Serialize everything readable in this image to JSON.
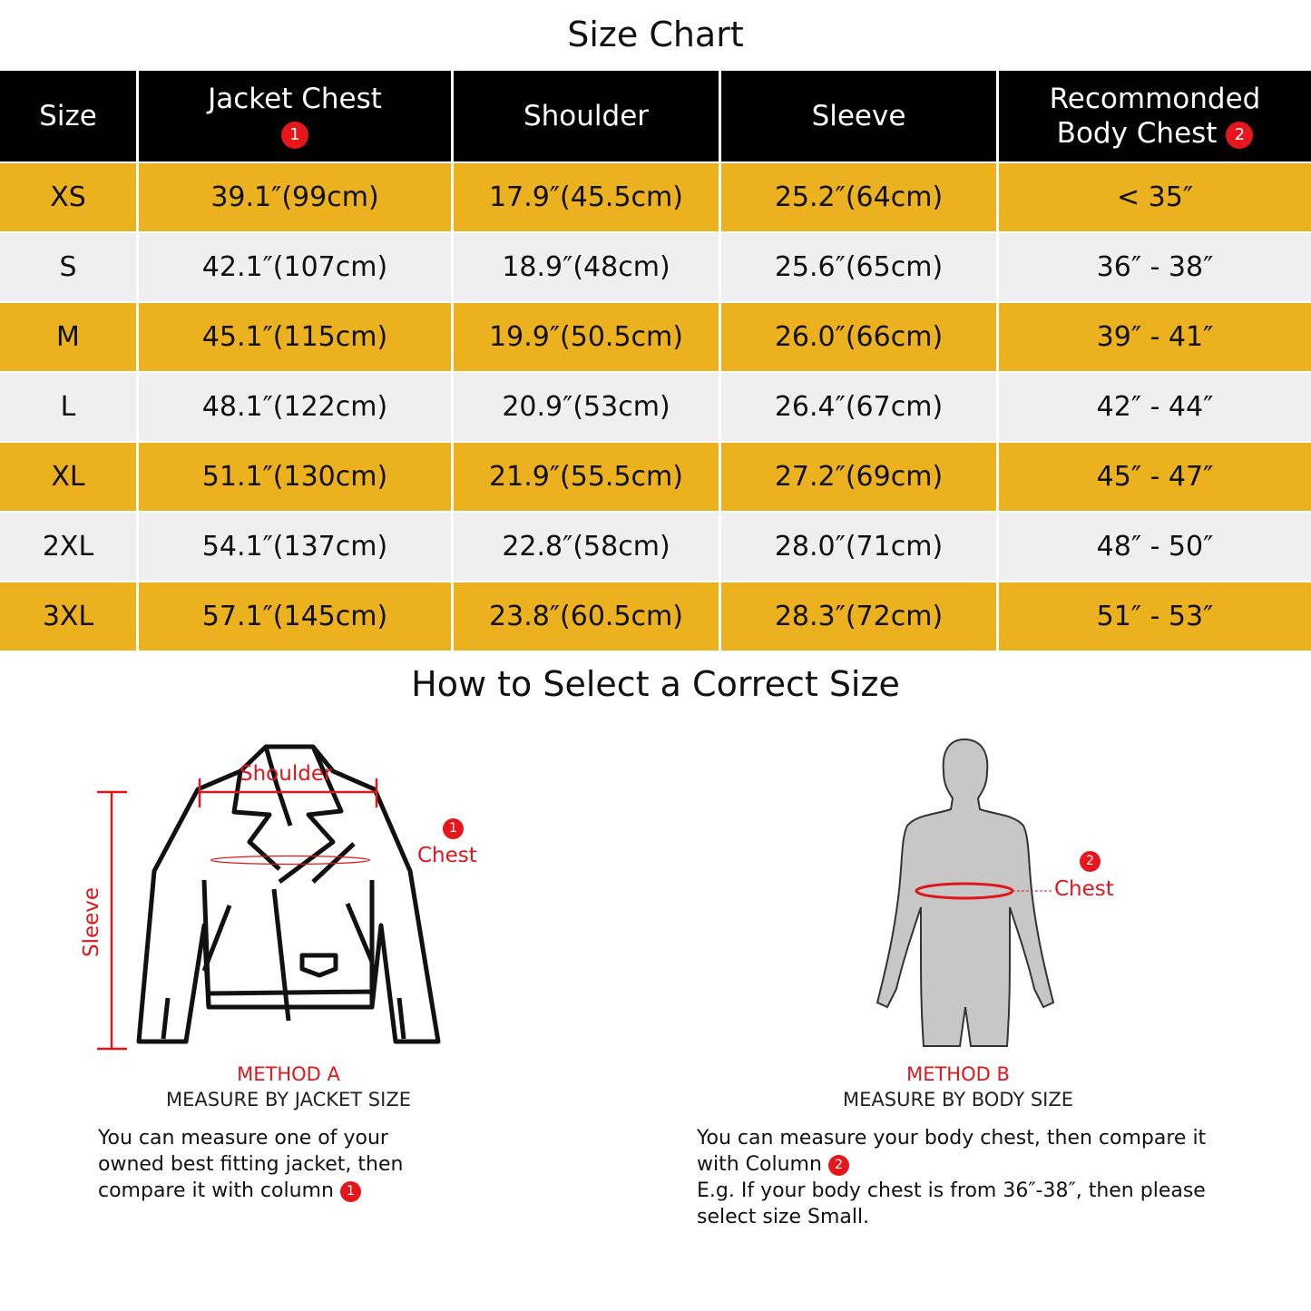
{
  "title": "Size Chart",
  "table": {
    "headers": [
      "Size",
      "Jacket Chest",
      "Shoulder",
      "Sleeve",
      "Recommonded",
      "Body  Chest"
    ],
    "header_badges": [
      "1",
      "2"
    ],
    "rows": [
      [
        "XS",
        "39.1″(99cm)",
        "17.9″(45.5cm)",
        "25.2″(64cm)",
        "< 35″"
      ],
      [
        "S",
        "42.1″(107cm)",
        "18.9″(48cm)",
        "25.6″(65cm)",
        "36″ - 38″"
      ],
      [
        "M",
        "45.1″(115cm)",
        "19.9″(50.5cm)",
        "26.0″(66cm)",
        "39″ - 41″"
      ],
      [
        "L",
        "48.1″(122cm)",
        "20.9″(53cm)",
        "26.4″(67cm)",
        "42″ - 44″"
      ],
      [
        "XL",
        "51.1″(130cm)",
        "21.9″(55.5cm)",
        "27.2″(69cm)",
        "45″ - 47″"
      ],
      [
        "2XL",
        "54.1″(137cm)",
        "22.8″(58cm)",
        "28.0″(71cm)",
        "48″ - 50″"
      ],
      [
        "3XL",
        "57.1″(145cm)",
        "23.8″(60.5cm)",
        "28.3″(72cm)",
        "51″ - 53″"
      ]
    ],
    "colors": {
      "header": "#000000",
      "odd_row": "#ebb11f",
      "even_row": "#efefef",
      "badge": "#e5161c"
    }
  },
  "guide": {
    "title": "How to Select a Correct Size",
    "jacket_labels": {
      "shoulder": "Shoulder",
      "sleeve": "Sleeve",
      "chest": "Chest",
      "badge": "1"
    },
    "body_labels": {
      "chest": "Chest",
      "badge": "2"
    },
    "method_a": {
      "title": "METHOD A",
      "subtitle": "MEASURE BY JACKET SIZE",
      "text": "You can measure one of your owned best fitting jacket, then compare it with column",
      "badge": "1"
    },
    "method_b": {
      "title": "METHOD B",
      "subtitle": "MEASURE BY BODY SIZE",
      "text1": "You can measure your body chest, then compare it with Column",
      "badge": "2",
      "text2": "E.g. If your body chest is from 36″-38″, then please select size Small."
    }
  }
}
